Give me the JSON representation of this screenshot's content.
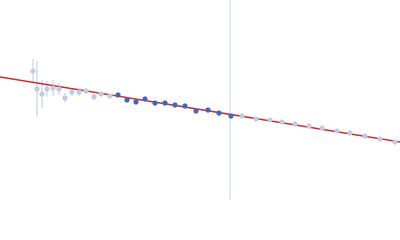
{
  "chart_data": {
    "type": "scatter",
    "xlim": [
      0,
      400
    ],
    "ylim": [
      0,
      200
    ],
    "vline": {
      "x": 230,
      "color": "#c9d3ea"
    },
    "fit": {
      "x": [
        0,
        400
      ],
      "y": [
        123,
        58
      ],
      "color": "#d62728"
    },
    "series": [
      {
        "color": "#bccbe6",
        "x": [
          33,
          37,
          42,
          47,
          53,
          59,
          65,
          72,
          79,
          86,
          94,
          101,
          110,
          242,
          256,
          270,
          282,
          295,
          309,
          322,
          337,
          350,
          365,
          380,
          395
        ],
        "values": [
          129,
          111,
          106,
          111,
          112,
          111,
          102,
          108,
          108,
          109,
          103,
          106,
          104,
          84,
          81,
          80,
          78,
          76,
          74,
          72,
          69,
          67,
          64,
          61,
          58
        ],
        "errors": [
          12,
          28,
          14,
          8,
          8,
          6,
          5,
          4,
          4,
          3,
          3,
          2,
          2,
          1,
          1,
          1,
          1,
          1,
          1,
          1,
          1,
          1,
          1,
          1,
          1
        ]
      },
      {
        "color": "#3a67c2",
        "x": [
          118,
          127,
          136,
          145,
          155,
          165,
          175,
          185,
          196,
          208,
          219,
          231
        ],
        "values": [
          105,
          100,
          98,
          101,
          97,
          97,
          95,
          94,
          89,
          90,
          87,
          84
        ]
      }
    ]
  }
}
